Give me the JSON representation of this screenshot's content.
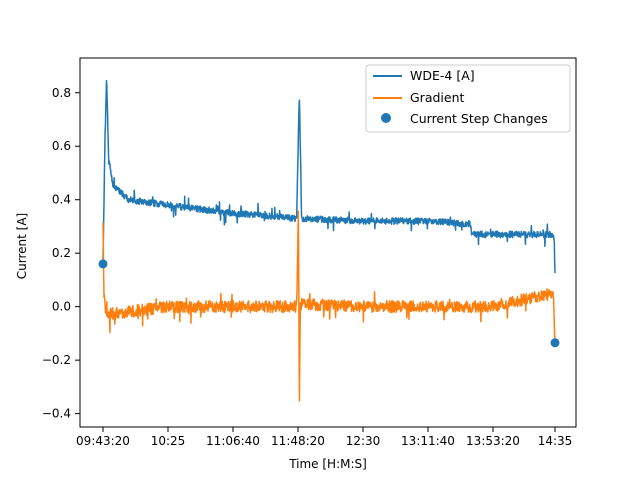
{
  "chart_data": {
    "type": "line",
    "title": "",
    "xlabel": "Time [H:M:S]",
    "ylabel": "Current [A]",
    "x_ticks": [
      "09:43:20",
      "10:25",
      "11:06:40",
      "11:48:20",
      "12:30",
      "13:11:40",
      "13:53:20",
      "14:35"
    ],
    "y_ticks": [
      "−0.4",
      "−0.2",
      "0.0",
      "0.2",
      "0.4",
      "0.6",
      "0.8"
    ],
    "ylim": [
      -0.45,
      0.93
    ],
    "grid": false,
    "legend_position": "top-right",
    "colors": {
      "series_1": "#1f77b4",
      "series_2": "#ff7f0e",
      "points": "#1f77b4"
    },
    "series": [
      {
        "name": "WDE-4 [A]",
        "style": "line",
        "points": [
          [
            "09:43:20",
            0.16
          ],
          [
            "09:44:30",
            0.58
          ],
          [
            "09:45:40",
            0.86
          ],
          [
            "09:47:00",
            0.55
          ],
          [
            "09:50:00",
            0.45
          ],
          [
            "10:00:00",
            0.4
          ],
          [
            "10:25:00",
            0.38
          ],
          [
            "11:06:40",
            0.35
          ],
          [
            "11:48:20",
            0.33
          ],
          [
            "11:50:00",
            0.8
          ],
          [
            "11:51:30",
            0.33
          ],
          [
            "12:30:00",
            0.32
          ],
          [
            "13:11:40",
            0.32
          ],
          [
            "13:40:00",
            0.31
          ],
          [
            "13:41:30",
            0.27
          ],
          [
            "13:53:20",
            0.27
          ],
          [
            "14:33:00",
            0.27
          ],
          [
            "14:34:30",
            0.25
          ],
          [
            "14:35:00",
            0.12
          ]
        ]
      },
      {
        "name": "Gradient",
        "style": "line",
        "points": [
          [
            "09:43:20",
            0.32
          ],
          [
            "09:44:00",
            0.05
          ],
          [
            "09:45:00",
            -0.03
          ],
          [
            "10:25:00",
            0.0
          ],
          [
            "11:06:40",
            0.0
          ],
          [
            "11:48:20",
            0.0
          ],
          [
            "11:49:30",
            0.38
          ],
          [
            "11:50:00",
            -0.39
          ],
          [
            "11:50:40",
            0.01
          ],
          [
            "12:30:00",
            0.0
          ],
          [
            "13:11:40",
            0.0
          ],
          [
            "13:53:20",
            0.0
          ],
          [
            "14:34:00",
            0.05
          ],
          [
            "14:35:00",
            -0.13
          ]
        ]
      },
      {
        "name": "Current Step Changes",
        "style": "scatter",
        "points": [
          [
            "09:43:20",
            0.16
          ],
          [
            "14:35:00",
            -0.135
          ]
        ]
      }
    ]
  }
}
